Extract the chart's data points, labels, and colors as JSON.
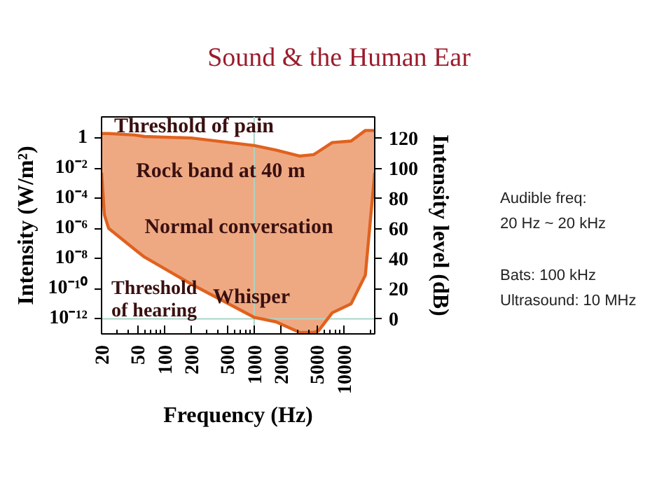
{
  "chart_data": {
    "type": "line",
    "title": "Sound & the Human Ear",
    "xlabel": "Frequency (Hz)",
    "ylabel": "Intensity (W/m²)",
    "y2label": "Intensity level (dB)",
    "x": [
      20,
      21.5,
      24,
      47,
      60,
      200,
      1000,
      1750,
      3200,
      4600,
      5200,
      7400,
      12000,
      17300,
      22000
    ],
    "series": [
      {
        "axis": "y2",
        "color": "#e0621e",
        "values": [
          97,
          69,
          60,
          46,
          41,
          23,
          1,
          -2,
          -9,
          -9,
          -8,
          4,
          10,
          29,
          97
        ],
        "lower": [
          97,
          69,
          60,
          46,
          41,
          23,
          1,
          -2,
          -9,
          -9,
          -8,
          4,
          10,
          29,
          97
        ],
        "upper": [
          123,
          123,
          123,
          122,
          121,
          120,
          115,
          112,
          108,
          109,
          111,
          117,
          118,
          125,
          125
        ]
      },
      {
        "axis": "y2",
        "color": "#e0621e",
        "values": [
          123,
          123,
          123,
          122,
          121,
          120,
          115,
          112,
          108,
          109,
          111,
          117,
          118,
          125,
          125
        ]
      }
    ],
    "log": "xy",
    "xlim": [
      20,
      22000
    ],
    "xticks": [
      20,
      50,
      100,
      200,
      500,
      1000,
      2000,
      5000,
      10000
    ],
    "ylim": [
      1e-13,
      25
    ],
    "yticks": [
      {
        "value": 1,
        "label": "1"
      },
      {
        "value": 0.01,
        "label": "10⁻²"
      },
      {
        "value": 0.0001,
        "label": "10⁻⁴"
      },
      {
        "value": 1e-06,
        "label": "10⁻⁶"
      },
      {
        "value": 1e-08,
        "label": "10⁻⁸"
      },
      {
        "value": 1e-10,
        "label": "10⁻¹⁰"
      },
      {
        "value": 1e-12,
        "label": "10⁻¹²"
      }
    ],
    "y2lim": [
      -10,
      134
    ],
    "y2ticks": [
      0,
      20,
      40,
      60,
      80,
      100,
      120
    ],
    "ref_lines": [
      {
        "axis": "x",
        "value": 1000,
        "color": "#a8d5c8"
      },
      {
        "axis": "y2",
        "value": 0,
        "color": "#a8d5c8"
      }
    ],
    "annotations": [
      "Threshold of pain",
      "Rock band at 40 m",
      "Normal conversation",
      "Whisper",
      "Threshold\nof hearing",
      "Audible freq:\n20 Hz ~ 20 kHz",
      "Bats:  100 kHz",
      "Ultrasound:  10 MHz"
    ],
    "grid": false,
    "marker": "none"
  }
}
